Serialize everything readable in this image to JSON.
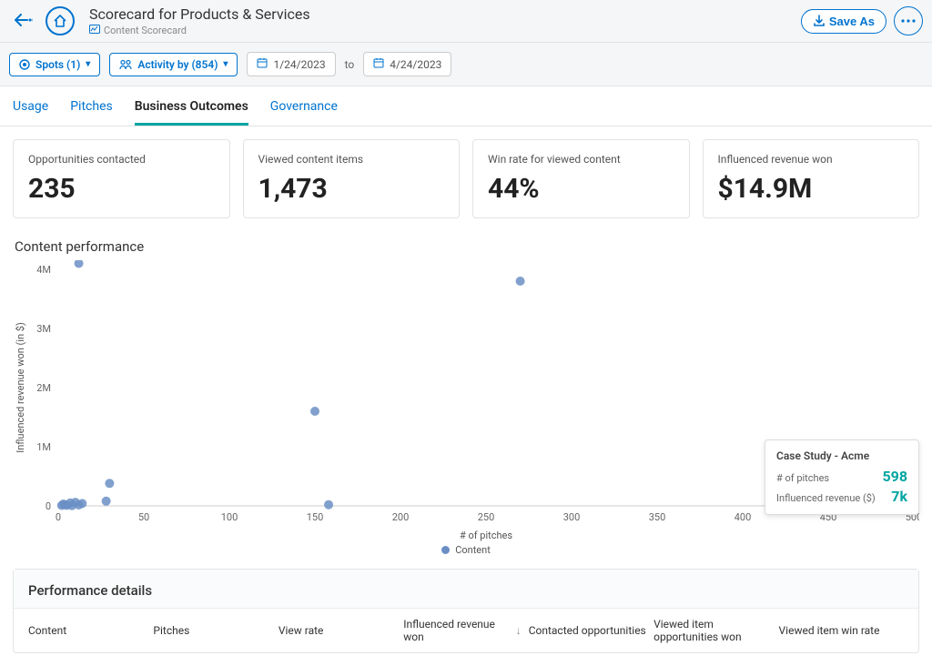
{
  "header": {
    "title": "Scorecard for Products & Services",
    "subtitle": "Content Scorecard",
    "save_as": "Save As"
  },
  "filters": {
    "spots_label": "Spots (1)",
    "activity_label": "Activity by (854)",
    "date_from": "1/24/2023",
    "date_to": "4/24/2023",
    "to_label": "to"
  },
  "tabs": {
    "t0": "Usage",
    "t1": "Pitches",
    "t2": "Business Outcomes",
    "t3": "Governance",
    "active_index": 2
  },
  "kpis": {
    "opportunities": {
      "label": "Opportunities contacted",
      "value": "235"
    },
    "viewed": {
      "label": "Viewed content items",
      "value": "1,473"
    },
    "winrate": {
      "label": "Win rate for viewed content",
      "value": "44%"
    },
    "revenue": {
      "label": "Influenced revenue won",
      "value": "$14.9M"
    }
  },
  "chart": {
    "title": "Content performance",
    "type": "scatter",
    "x_label": "# of pitches",
    "y_label": "Influenced revenue won (in $)",
    "xlim": [
      0,
      500
    ],
    "ylim": [
      0,
      4000000
    ],
    "x_tick_step": 50,
    "y_ticks": [
      0,
      1000000,
      2000000,
      3000000,
      4000000
    ],
    "y_tick_labels": [
      "0",
      "1M",
      "2M",
      "3M",
      "4M"
    ],
    "marker_radius": 5,
    "marker_color": "#6b8fc4",
    "background_color": "#ffffff",
    "legend_label": "Content",
    "points": [
      {
        "x": 12,
        "y": 4100000
      },
      {
        "x": 270,
        "y": 3800000
      },
      {
        "x": 150,
        "y": 1600000
      },
      {
        "x": 30,
        "y": 380000
      },
      {
        "x": 28,
        "y": 80000
      },
      {
        "x": 158,
        "y": 20000
      },
      {
        "x": 3,
        "y": 30000
      },
      {
        "x": 5,
        "y": 10000
      },
      {
        "x": 7,
        "y": 50000
      },
      {
        "x": 8,
        "y": 5000
      },
      {
        "x": 10,
        "y": 60000
      },
      {
        "x": 12,
        "y": 15000
      },
      {
        "x": 14,
        "y": 40000
      },
      {
        "x": 2,
        "y": 8000
      },
      {
        "x": 4,
        "y": 20000
      }
    ],
    "tooltip": {
      "title": "Case Study - Acme",
      "row1_label": "# of pitches",
      "row1_value": "598",
      "row2_label": "Influenced revenue ($)",
      "row2_value": "7k"
    },
    "extra_point": {
      "rx": 998,
      "ry": 0
    }
  },
  "details": {
    "title": "Performance details",
    "columns": {
      "c0": "Content",
      "c1": "Pitches",
      "c2": "View rate",
      "c3": "Influenced revenue won",
      "c4": "Contacted opportunities",
      "c5": "Viewed item opportunities won",
      "c6": "Viewed item win rate"
    },
    "sort_column_index": 3
  },
  "colors": {
    "primary": "#0073cf",
    "teal": "#00a5a0",
    "marker": "#6b8fc4",
    "border": "#e1e3e6",
    "text_muted": "#666666"
  }
}
